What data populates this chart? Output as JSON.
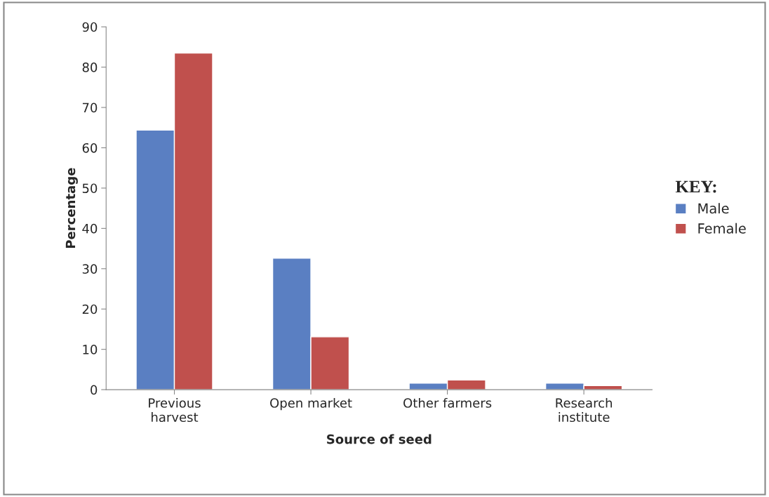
{
  "chart_data": {
    "type": "bar",
    "xlabel": "Source of seed",
    "ylabel": "Percentage",
    "legend_title": "KEY:",
    "categories": [
      "Previous\nharvest",
      "Open market",
      "Other farmers",
      "Research\ninstitute"
    ],
    "series": [
      {
        "name": "Male",
        "color": "#5a7fc2",
        "values": [
          64.4,
          32.6,
          1.6,
          1.6
        ]
      },
      {
        "name": "Female",
        "color": "#c0504d",
        "values": [
          83.5,
          13.1,
          2.4,
          1.0
        ]
      }
    ],
    "ylim": [
      0,
      90
    ],
    "yticks": [
      0,
      10,
      20,
      30,
      40,
      50,
      60,
      70,
      80,
      90
    ],
    "grid": false,
    "legend": "right"
  }
}
